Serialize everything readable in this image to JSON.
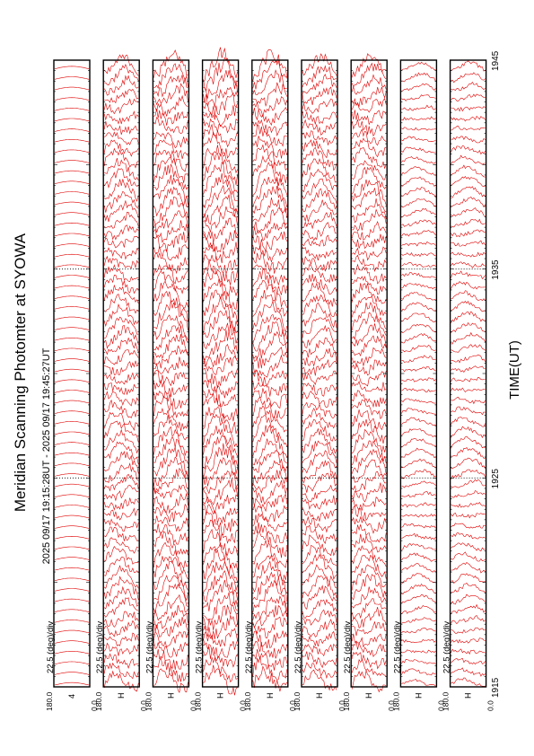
{
  "title": "Meridian Scanning Photomter at SYOWA",
  "subtitle": "2025 09/17 19:15:28UT - 2025 09/17 19:45:27UT",
  "colors": {
    "trace": "#e00000",
    "frame": "#000000",
    "background": "#ffffff"
  },
  "chart_data": {
    "type": "line",
    "orientation": "rotated 90 degrees counter-clockwise",
    "xlabel": "TIME(UT)",
    "x_ticks": [
      "1915",
      "1925",
      "1935",
      "1945"
    ],
    "x_range": [
      "19:15:28",
      "19:45:27"
    ],
    "y_range_deg": [
      0.0,
      180.0
    ],
    "panels": [
      {
        "channel": "4",
        "scale": "22.5 (deg)/div",
        "y_top_label": "180.0",
        "y_bottom_label": "0.0",
        "activity": 0.0
      },
      {
        "channel": "H",
        "scale": "22.5 (deg)/div",
        "y_top_label": "180.0",
        "y_bottom_label": "0.0",
        "activity": 0.55
      },
      {
        "channel": "H",
        "scale": "22.5 (deg)/div",
        "y_top_label": "180.0",
        "y_bottom_label": "0.0",
        "activity": 0.75
      },
      {
        "channel": "H",
        "scale": "22.5 (deg)/div",
        "y_top_label": "180.0",
        "y_bottom_label": "0.0",
        "activity": 0.85
      },
      {
        "channel": "H",
        "scale": "22.5 (deg)/div",
        "y_top_label": "180.0",
        "y_bottom_label": "0.0",
        "activity": 0.8
      },
      {
        "channel": "H",
        "scale": "22.5 (deg)/div",
        "y_top_label": "180.0",
        "y_bottom_label": "0.0",
        "activity": 0.6
      },
      {
        "channel": "H",
        "scale": "22.5 (deg)/div",
        "y_top_label": "180.0",
        "y_bottom_label": "0.0",
        "activity": 0.65
      },
      {
        "channel": "H",
        "scale": "22.5 (deg)/div",
        "y_top_label": "180.0",
        "y_bottom_label": "0.0",
        "activity": 0.2
      },
      {
        "channel": "H",
        "scale": "22.5 (deg)/div",
        "y_top_label": "180.0",
        "y_bottom_label": "0.0",
        "activity": 0.25
      }
    ]
  }
}
